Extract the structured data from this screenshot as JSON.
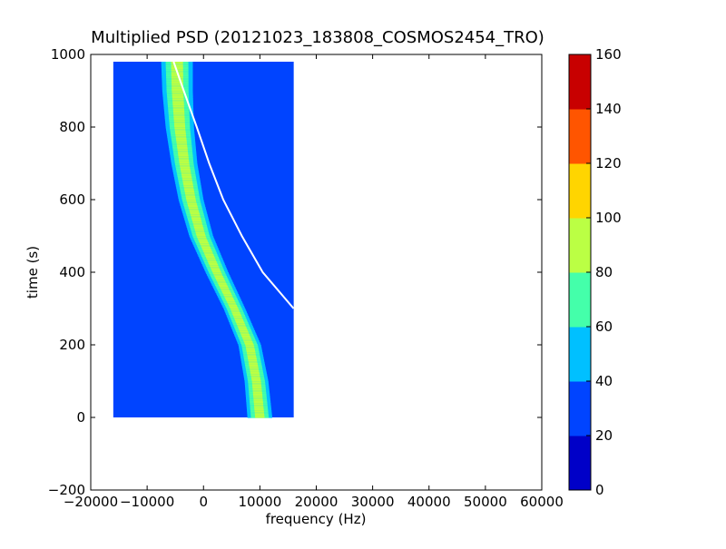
{
  "chart_data": {
    "type": "heatmap",
    "title": "Multiplied PSD (20121023_183808_COSMOS2454_TRO)",
    "xlabel": "frequency (Hz)",
    "ylabel": "time (s)",
    "xlim": [
      -20000,
      60000
    ],
    "ylim": [
      -200,
      1000
    ],
    "xticks": [
      -20000,
      -10000,
      0,
      10000,
      20000,
      30000,
      40000,
      50000,
      60000
    ],
    "yticks": [
      -200,
      0,
      200,
      400,
      600,
      800,
      1000
    ],
    "xtick_labels": [
      "−20000",
      "−10000",
      "0",
      "10000",
      "20000",
      "30000",
      "40000",
      "50000",
      "60000"
    ],
    "ytick_labels": [
      "−200",
      "0",
      "200",
      "400",
      "600",
      "800",
      "1000"
    ],
    "heatmap_extent": {
      "x": [
        -16000,
        16000
      ],
      "y": [
        0,
        980
      ]
    },
    "background_level": 30,
    "signal_track": {
      "description": "bright Doppler-shifted carrier, center frequency (Hz) vs time (s)",
      "time": [
        0,
        100,
        200,
        300,
        400,
        500,
        600,
        700,
        800,
        900,
        980
      ],
      "center_freq": [
        10000,
        9400,
        8200,
        5500,
        2400,
        -400,
        -2200,
        -3400,
        -4200,
        -4600,
        -4700
      ],
      "half_width": [
        2200,
        2100,
        2000,
        1900,
        2000,
        2100,
        2200,
        2300,
        2500,
        2700,
        2800
      ],
      "peak_level": 85
    },
    "fit_curve": {
      "color": "#ffffff",
      "time": [
        980,
        900,
        800,
        700,
        600,
        500,
        400,
        300
      ],
      "freq": [
        -5300,
        -3500,
        -1200,
        1000,
        3500,
        6800,
        10500,
        16000
      ]
    },
    "colorbar": {
      "min": 0,
      "max": 160,
      "step": 20,
      "ticks": [
        0,
        20,
        40,
        60,
        80,
        100,
        120,
        140,
        160
      ],
      "tick_labels": [
        "0",
        "20",
        "40",
        "60",
        "80",
        "100",
        "120",
        "140",
        "160"
      ],
      "colors": [
        "#0000c8",
        "#0044ff",
        "#00c0ff",
        "#44ffaa",
        "#bbff44",
        "#ffd500",
        "#ff5500",
        "#c80000"
      ]
    }
  }
}
